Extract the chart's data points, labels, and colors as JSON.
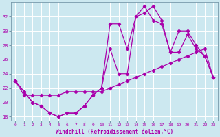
{
  "xlabel": "Windchill (Refroidissement éolien,°C)",
  "background_color": "#cce8f0",
  "line_color": "#aa00aa",
  "grid_color": "#ffffff",
  "xlim": [
    -0.5,
    23.5
  ],
  "ylim": [
    17.5,
    34.0
  ],
  "yticks": [
    18,
    20,
    22,
    24,
    26,
    28,
    30,
    32
  ],
  "xticks": [
    0,
    1,
    2,
    3,
    4,
    5,
    6,
    7,
    8,
    9,
    10,
    11,
    12,
    13,
    14,
    15,
    16,
    17,
    18,
    19,
    20,
    21,
    22,
    23
  ],
  "line1_x": [
    0,
    1,
    2,
    3,
    4,
    5,
    6,
    7,
    8,
    9,
    10,
    11,
    12,
    13,
    14,
    15,
    16,
    17,
    18,
    19,
    20,
    21,
    22,
    23
  ],
  "line1_y": [
    23.0,
    21.5,
    20.0,
    19.5,
    18.5,
    18.0,
    18.5,
    18.5,
    19.5,
    21.0,
    22.0,
    31.0,
    31.0,
    27.5,
    32.0,
    33.5,
    31.5,
    31.0,
    27.0,
    30.0,
    30.0,
    28.0,
    26.5,
    23.5
  ],
  "line2_x": [
    0,
    1,
    2,
    3,
    4,
    5,
    6,
    7,
    8,
    9,
    10,
    11,
    12,
    13,
    14,
    15,
    16,
    17,
    18,
    19,
    20,
    21,
    22,
    23
  ],
  "line2_y": [
    23.0,
    21.5,
    20.0,
    19.5,
    18.5,
    18.0,
    18.5,
    18.5,
    19.5,
    21.0,
    22.0,
    27.5,
    24.0,
    24.0,
    32.0,
    32.5,
    33.5,
    31.5,
    27.0,
    27.0,
    29.5,
    27.5,
    26.5,
    23.5
  ],
  "line3_x": [
    0,
    1,
    2,
    3,
    4,
    5,
    6,
    7,
    8,
    9,
    10,
    11,
    12,
    13,
    14,
    15,
    16,
    17,
    18,
    19,
    20,
    21,
    22,
    23
  ],
  "line3_y": [
    23.0,
    21.0,
    21.0,
    21.0,
    21.0,
    21.0,
    21.5,
    21.5,
    21.5,
    21.5,
    21.5,
    22.0,
    22.5,
    23.0,
    23.5,
    24.0,
    24.5,
    25.0,
    25.5,
    26.0,
    26.5,
    27.0,
    27.5,
    23.5
  ]
}
